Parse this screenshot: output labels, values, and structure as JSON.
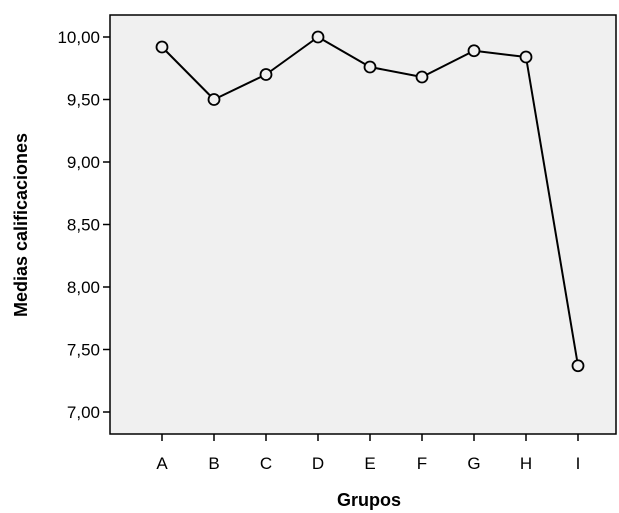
{
  "chart_data": {
    "type": "line",
    "categories": [
      "A",
      "B",
      "C",
      "D",
      "E",
      "F",
      "G",
      "H",
      "I"
    ],
    "series": [
      {
        "values": [
          9.92,
          9.5,
          9.7,
          10.0,
          9.76,
          9.68,
          9.89,
          9.84,
          7.37
        ]
      }
    ],
    "xlabel": "Grupos",
    "ylabel": "Medias calificaciones",
    "ylim": [
      7.0,
      10.0
    ],
    "yticks": [
      "7,00",
      "7,50",
      "8,00",
      "8,50",
      "9,00",
      "9,50",
      "10,00"
    ],
    "grid": false,
    "marker": "open-circle",
    "colors": {
      "plot_background": "#f0f0f0",
      "line": "#000000",
      "marker_fill": "#f0f0f0"
    }
  }
}
